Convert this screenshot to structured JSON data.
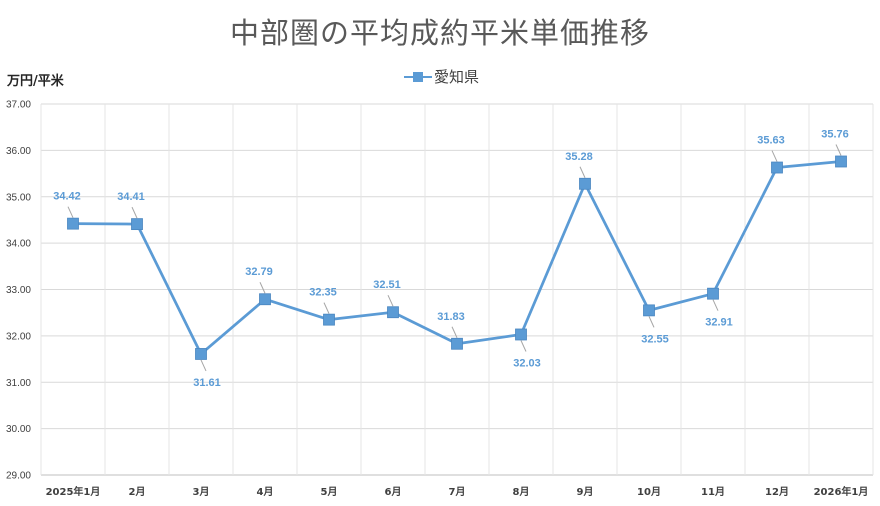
{
  "chart_data": {
    "type": "line",
    "title": "中部圏の平均成約平米単価推移",
    "ylabel": "万円/平米",
    "xlabel": "",
    "categories": [
      "2025年1月",
      "2月",
      "3月",
      "4月",
      "5月",
      "6月",
      "7月",
      "8月",
      "9月",
      "10月",
      "11月",
      "12月",
      "2026年1月"
    ],
    "series": [
      {
        "name": "愛知県",
        "values": [
          34.42,
          34.41,
          31.61,
          32.79,
          32.35,
          32.51,
          31.83,
          32.03,
          35.28,
          32.55,
          32.91,
          35.63,
          35.76
        ]
      }
    ],
    "ylim": [
      29.0,
      37.0
    ],
    "yticks": [
      "29.00",
      "30.00",
      "31.00",
      "32.00",
      "33.00",
      "34.00",
      "35.00",
      "36.00",
      "37.00"
    ],
    "data_labels": [
      "34.42",
      "34.41",
      "31.61",
      "32.79",
      "32.35",
      "32.51",
      "31.83",
      "32.03",
      "35.28",
      "32.55",
      "32.91",
      "35.63",
      "35.76"
    ],
    "grid": true,
    "legend_position": "top-center",
    "color": "#5B9BD5"
  }
}
